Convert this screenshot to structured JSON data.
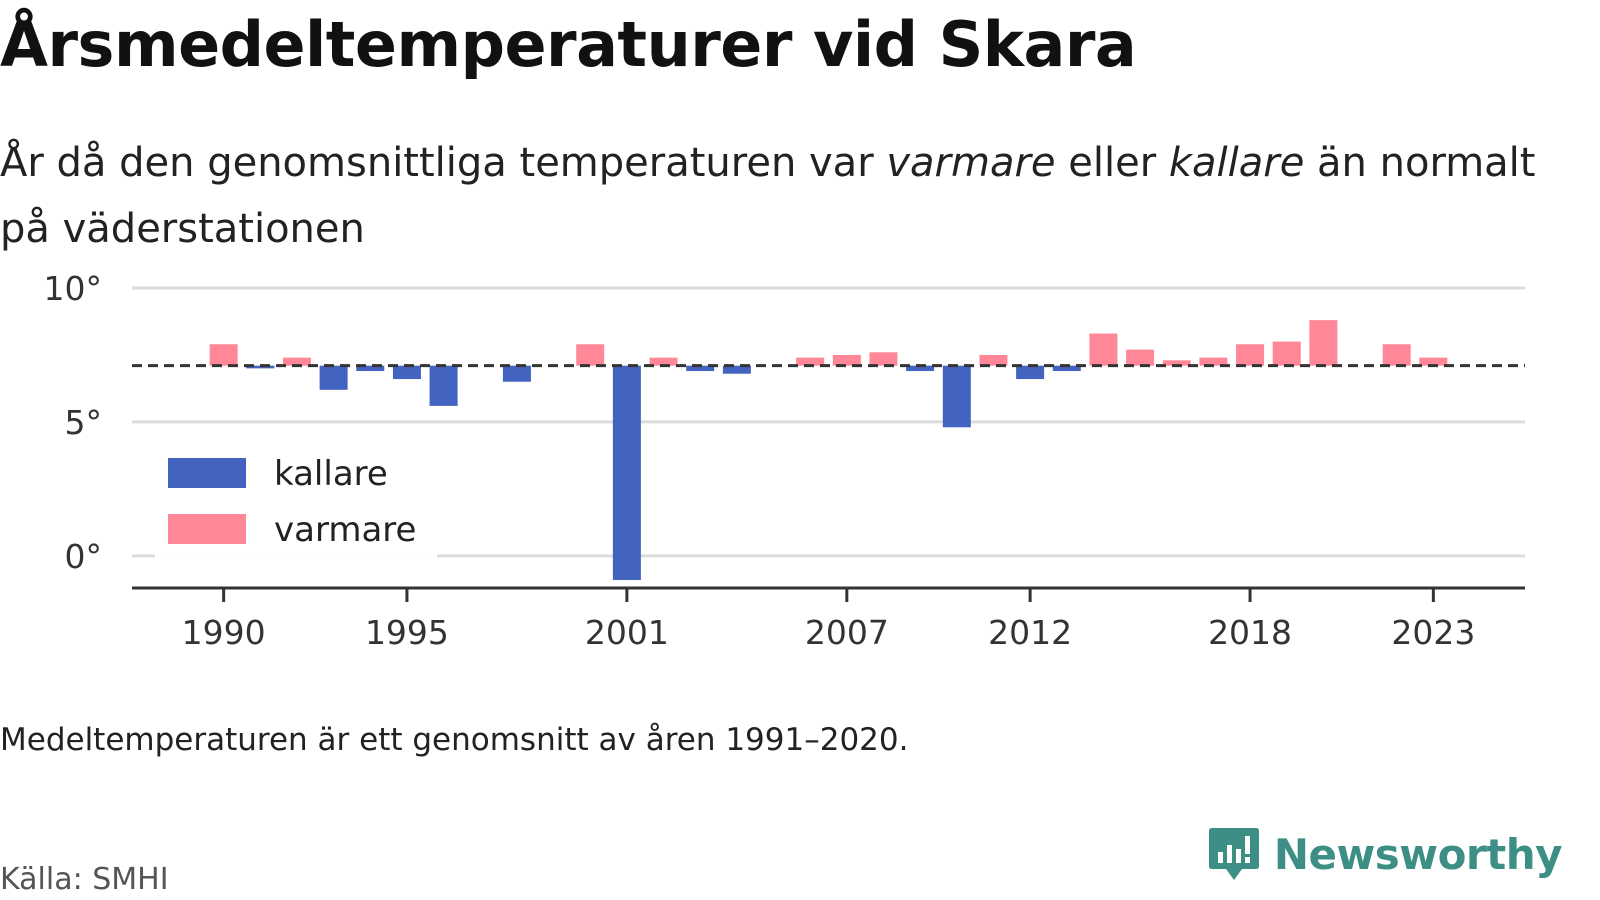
{
  "header": {
    "title": "Årsmedeltemperaturer vid Skara",
    "subtitle_part1": "År då den genomsnittliga temperaturen var ",
    "subtitle_warm": "varmare",
    "subtitle_part2": " eller ",
    "subtitle_cold": "kallare",
    "subtitle_part3": " än normalt på väderstationen"
  },
  "footer": {
    "note": "Medeltemperaturen är ett genomsnitt av åren 1991–2020.",
    "source": "Källa: SMHI",
    "brand": "Newsworthy"
  },
  "colors": {
    "kallare": "#4263c0",
    "varmare": "#ff8797",
    "grid": "#dddddd",
    "axis": "#333333",
    "reference_line": "#333333",
    "brand": "#3d8f86"
  },
  "chart_data": {
    "type": "bar",
    "title": "Årsmedeltemperaturer vid Skara",
    "xlabel": "",
    "ylabel": "",
    "baseline": 7.1,
    "ylim": [
      -1.2,
      10
    ],
    "xlim": [
      1987.5,
      2025.5
    ],
    "y_ticks": [
      0,
      5,
      10
    ],
    "y_tick_labels": [
      "0°",
      "5°",
      "10°"
    ],
    "x_ticks": [
      1990,
      1995,
      2001,
      2007,
      2012,
      2018,
      2023
    ],
    "x_tick_labels": [
      "1990",
      "1995",
      "2001",
      "2007",
      "2012",
      "2018",
      "2023"
    ],
    "legend": [
      {
        "key": "kallare",
        "label": "kallare"
      },
      {
        "key": "varmare",
        "label": "varmare"
      }
    ],
    "legend_position": "bottom-left",
    "grid": true,
    "series": [
      {
        "name": "kallare",
        "x": [
          1991,
          1993,
          1994,
          1995,
          1996,
          1998,
          2001,
          2003,
          2004,
          2009,
          2010,
          2012,
          2013
        ],
        "values": [
          7.0,
          6.2,
          6.9,
          6.6,
          5.6,
          6.5,
          -0.9,
          6.9,
          6.8,
          6.9,
          4.8,
          6.6,
          6.9
        ]
      },
      {
        "name": "varmare",
        "x": [
          1990,
          1992,
          2000,
          2002,
          2006,
          2007,
          2008,
          2011,
          2014,
          2015,
          2016,
          2017,
          2018,
          2019,
          2020,
          2022,
          2023
        ],
        "values": [
          7.9,
          7.4,
          7.9,
          7.4,
          7.4,
          7.5,
          7.6,
          7.5,
          8.3,
          7.7,
          7.3,
          7.4,
          7.9,
          8.0,
          8.8,
          7.9,
          7.4
        ]
      }
    ]
  }
}
